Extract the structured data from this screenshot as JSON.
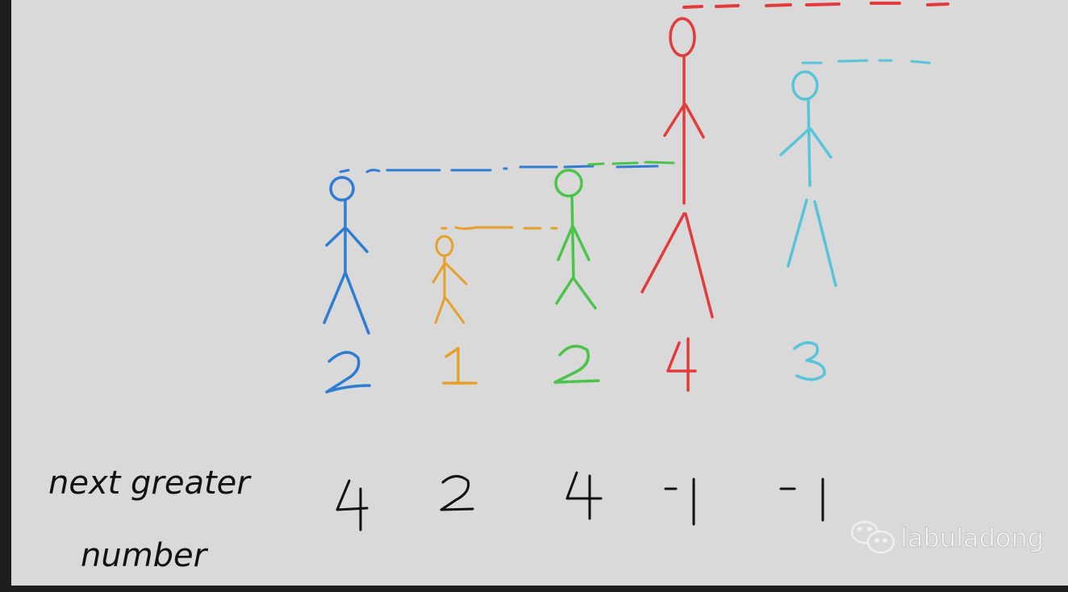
{
  "heights": [
    {
      "value": "2",
      "color": "#2f7cd3"
    },
    {
      "value": "1",
      "color": "#e6a02a"
    },
    {
      "value": "2",
      "color": "#4cc34a"
    },
    {
      "value": "4",
      "color": "#e23b3b"
    },
    {
      "value": "3",
      "color": "#56c4d9"
    }
  ],
  "row_label_line1": "next greater",
  "row_label_line2": "number",
  "answers": [
    "4",
    "2",
    "4",
    "-1",
    "-1"
  ],
  "watermark": "labuladong",
  "watermark_icon": "wechat-icon"
}
